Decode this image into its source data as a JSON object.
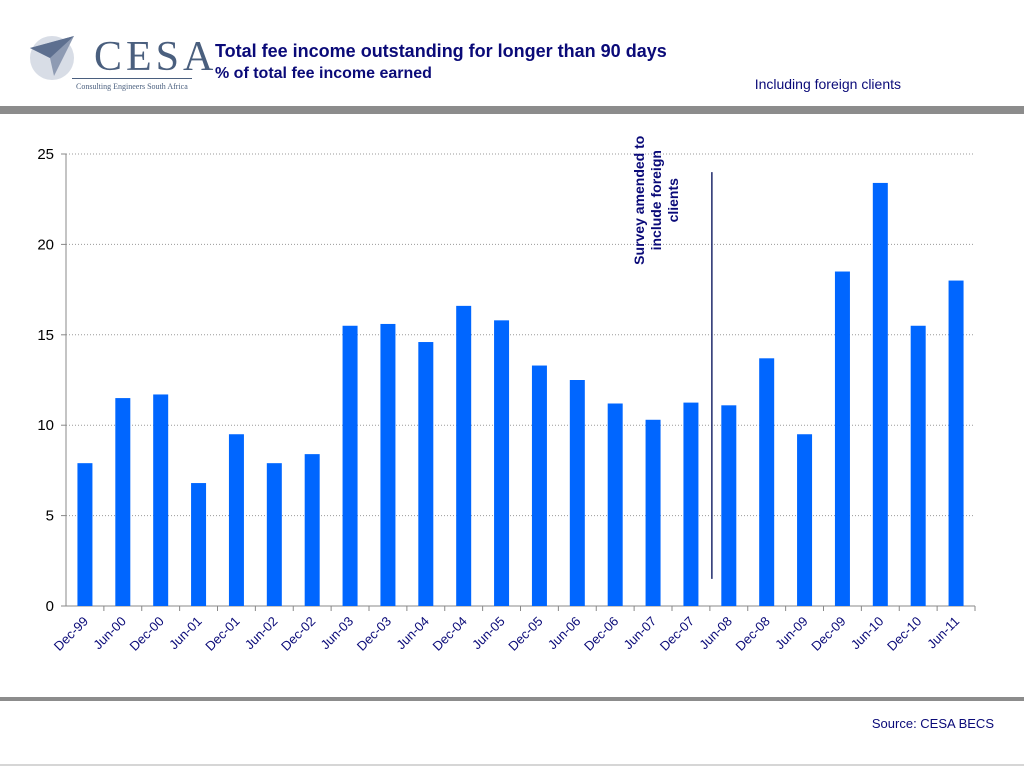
{
  "header": {
    "logo_text": "CESA",
    "logo_subtext": "Consulting Engineers South Africa",
    "title": "Total fee income outstanding for longer than 90 days",
    "subtitle": "% of total fee income earned",
    "note": "Including foreign clients"
  },
  "footer": {
    "source": "Source: CESA BECS"
  },
  "colors": {
    "bar": "#0066ff",
    "title_text": "#0a0a78",
    "band": "#8c8c8c",
    "marker_line": "#1f2a6b"
  },
  "chart_data": {
    "type": "bar",
    "title": "Total fee income outstanding for longer than 90 days",
    "subtitle": "% of total fee income earned",
    "xlabel": "",
    "ylabel": "",
    "ylim": [
      0,
      25
    ],
    "yticks": [
      0,
      5,
      10,
      15,
      20,
      25
    ],
    "grid": true,
    "legend": "none",
    "categories": [
      "Dec-99",
      "Jun-00",
      "Dec-00",
      "Jun-01",
      "Dec-01",
      "Jun-02",
      "Dec-02",
      "Jun-03",
      "Dec-03",
      "Jun-04",
      "Dec-04",
      "Jun-05",
      "Dec-05",
      "Jun-06",
      "Dec-06",
      "Jun-07",
      "Dec-07",
      "Jun-08",
      "Dec-08",
      "Jun-09",
      "Dec-09",
      "Jun-10",
      "Dec-10",
      "Jun-11"
    ],
    "values": [
      7.9,
      11.5,
      11.7,
      6.8,
      9.5,
      7.9,
      8.4,
      15.5,
      15.6,
      14.6,
      16.6,
      15.8,
      13.3,
      12.5,
      11.2,
      10.3,
      11.25,
      11.1,
      13.7,
      9.5,
      18.5,
      23.4,
      15.5,
      18.0
    ],
    "annotations": [
      {
        "lines": [
          "Survey amended to",
          "include foreign",
          "clients"
        ],
        "after_category": "Dec-07",
        "line_from": 1.5,
        "line_to": 24
      }
    ]
  }
}
